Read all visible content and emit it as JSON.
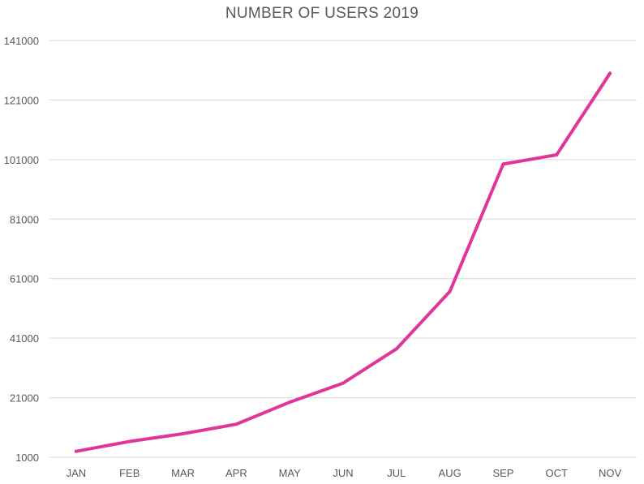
{
  "chart_data": {
    "type": "line",
    "title": "NUMBER OF USERS 2019",
    "xlabel": "",
    "ylabel": "",
    "categories": [
      "JAN",
      "FEB",
      "MAR",
      "APR",
      "MAY",
      "JUN",
      "JUL",
      "AUG",
      "SEP",
      "OCT",
      "NOV"
    ],
    "series": [
      {
        "values": [
          3000,
          6300,
          8900,
          12100,
          19500,
          25900,
          37400,
          56700,
          99500,
          102600,
          130000
        ],
        "color": "#e0369a"
      }
    ],
    "yticks": [
      "1000",
      "21000",
      "41000",
      "61000",
      "81000",
      "101000",
      "121000",
      "141000"
    ],
    "ylim": [
      1000,
      141000
    ],
    "grid": true,
    "legend": "none"
  }
}
